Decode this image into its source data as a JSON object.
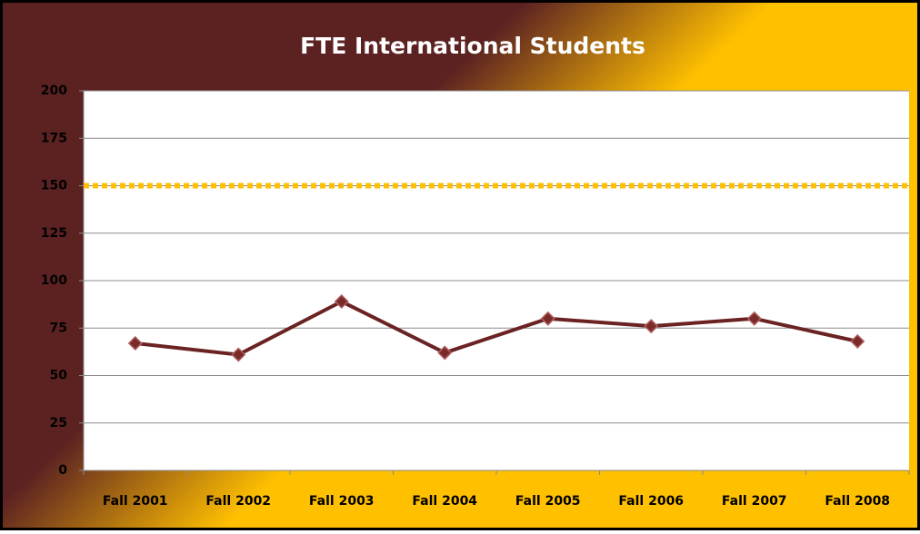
{
  "chart_data": {
    "type": "line",
    "title": "FTE International Students",
    "categories": [
      "Fall 2001",
      "Fall 2002",
      "Fall 2003",
      "Fall 2004",
      "Fall 2005",
      "Fall 2006",
      "Fall 2007",
      "Fall 2008"
    ],
    "series": [
      {
        "color": "#6b2222",
        "values": [
          67,
          61,
          89,
          62,
          80,
          76,
          80,
          68
        ]
      }
    ],
    "reference_line": {
      "value": 150,
      "color": "#ffc000"
    },
    "ylim": [
      0,
      200
    ],
    "yticks": [
      0,
      25,
      50,
      75,
      100,
      125,
      150,
      175,
      200
    ],
    "grid": true
  }
}
